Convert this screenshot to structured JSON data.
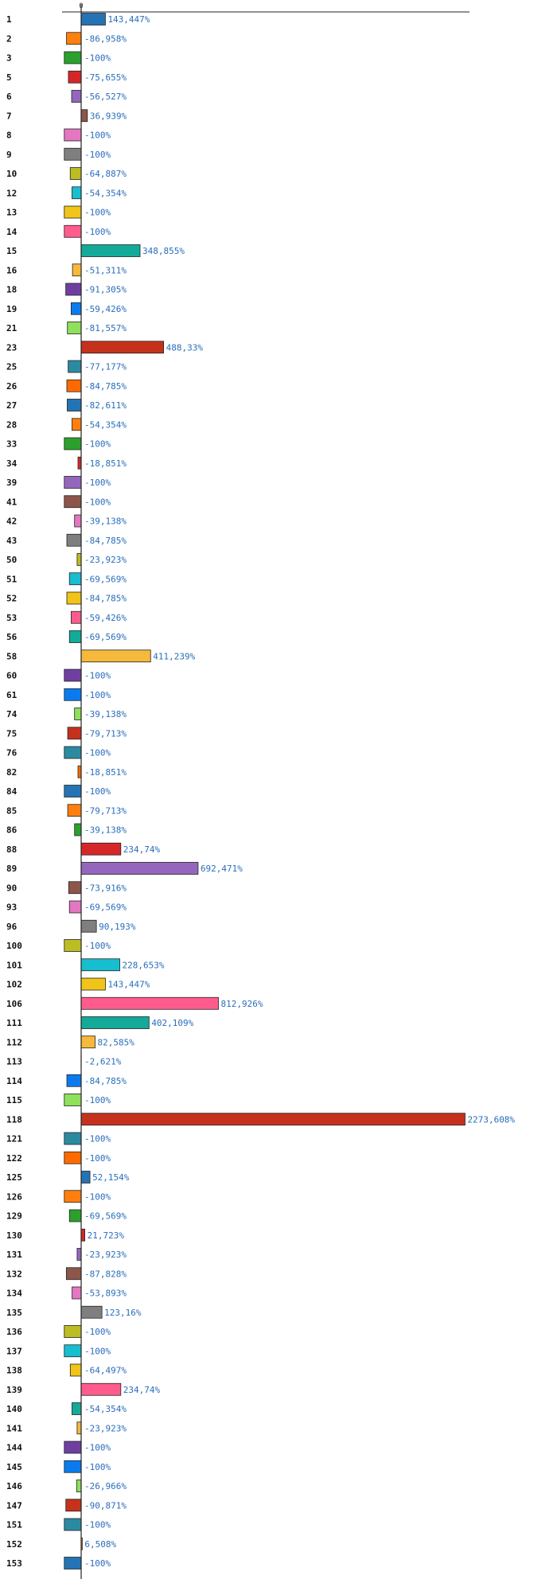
{
  "chart_data": {
    "type": "bar",
    "orientation": "horizontal",
    "unit": "%",
    "xlim": [
      -100,
      2300
    ],
    "x_ticks": [
      0
    ],
    "grid": false,
    "legend": "none",
    "highlight_category": "42",
    "highlight_color": "#e8141b",
    "category_color": "#111111",
    "value_label_color": "#2a6ebb",
    "palette": [
      "#2474b5",
      "#ff7f0e",
      "#2ca02c",
      "#d62728",
      "#9467bd",
      "#8c564b",
      "#e377c2",
      "#7f7f7f",
      "#bcbd22",
      "#17becf",
      "#f0c419",
      "#ff5c8d",
      "#14aa99",
      "#f6b93b",
      "#6f3fa0",
      "#0a7bef",
      "#8fe05a",
      "#c6311c",
      "#2c8aa0",
      "#ff6a00"
    ],
    "categories": [
      "1",
      "2",
      "3",
      "5",
      "6",
      "7",
      "8",
      "9",
      "10",
      "12",
      "13",
      "14",
      "15",
      "16",
      "18",
      "19",
      "21",
      "23",
      "25",
      "26",
      "27",
      "28",
      "33",
      "34",
      "39",
      "41",
      "42",
      "43",
      "50",
      "51",
      "52",
      "53",
      "56",
      "58",
      "60",
      "61",
      "74",
      "75",
      "76",
      "82",
      "84",
      "85",
      "86",
      "88",
      "89",
      "90",
      "93",
      "96",
      "100",
      "101",
      "102",
      "106",
      "111",
      "112",
      "113",
      "114",
      "115",
      "118",
      "121",
      "122",
      "125",
      "126",
      "129",
      "130",
      "131",
      "132",
      "134",
      "135",
      "136",
      "137",
      "138",
      "139",
      "140",
      "141",
      "144",
      "145",
      "146",
      "147",
      "151",
      "152",
      "153"
    ],
    "values": [
      143.447,
      -86.958,
      -100,
      -75.655,
      -56.527,
      36.939,
      -100,
      -100,
      -64.887,
      -54.354,
      -100,
      -100,
      348.855,
      -51.311,
      -91.305,
      -59.426,
      -81.557,
      488.33,
      -77.177,
      -84.785,
      -82.611,
      -54.354,
      -100,
      -18.851,
      -100,
      -100,
      -39.138,
      -84.785,
      -23.923,
      -69.569,
      -84.785,
      -59.426,
      -69.569,
      411.239,
      -100,
      -100,
      -39.138,
      -79.713,
      -100,
      -18.851,
      -100,
      -79.713,
      -39.138,
      234.74,
      692.471,
      -73.916,
      -69.569,
      90.193,
      -100,
      228.653,
      143.447,
      812.926,
      402.109,
      82.585,
      -2.621,
      -84.785,
      -100,
      2273.608,
      -100,
      -100,
      52.154,
      -100,
      -69.569,
      21.723,
      -23.923,
      -87.828,
      -53.893,
      123.16,
      -100,
      -100,
      -64.497,
      234.74,
      -54.354,
      -23.923,
      -100,
      -100,
      -26.966,
      -90.871,
      -100,
      6.508,
      -100
    ],
    "value_labels": [
      "143,447%",
      "-86,958%",
      "-100%",
      "-75,655%",
      "-56,527%",
      "36,939%",
      "-100%",
      "-100%",
      "-64,887%",
      "-54,354%",
      "-100%",
      "-100%",
      "348,855%",
      "-51,311%",
      "-91,305%",
      "-59,426%",
      "-81,557%",
      "488,33%",
      "-77,177%",
      "-84,785%",
      "-82,611%",
      "-54,354%",
      "-100%",
      "-18,851%",
      "-100%",
      "-100%",
      "-39,138%",
      "-84,785%",
      "-23,923%",
      "-69,569%",
      "-84,785%",
      "-59,426%",
      "-69,569%",
      "411,239%",
      "-100%",
      "-100%",
      "-39,138%",
      "-79,713%",
      "-100%",
      "-18,851%",
      "-100%",
      "-79,713%",
      "-39,138%",
      "234,74%",
      "692,471%",
      "-73,916%",
      "-69,569%",
      "90,193%",
      "-100%",
      "228,653%",
      "143,447%",
      "812,926%",
      "402,109%",
      "82,585%",
      "-2,621%",
      "-84,785%",
      "-100%",
      "2273,608%",
      "-100%",
      "-100%",
      "52,154%",
      "-100%",
      "-69,569%",
      "21,723%",
      "-23,923%",
      "-87,828%",
      "-53,893%",
      "123,16%",
      "-100%",
      "-100%",
      "-64,497%",
      "234,74%",
      "-54,354%",
      "-23,923%",
      "-100%",
      "-100%",
      "-26,966%",
      "-90,871%",
      "-100%",
      "6,508%",
      "-100%"
    ]
  }
}
